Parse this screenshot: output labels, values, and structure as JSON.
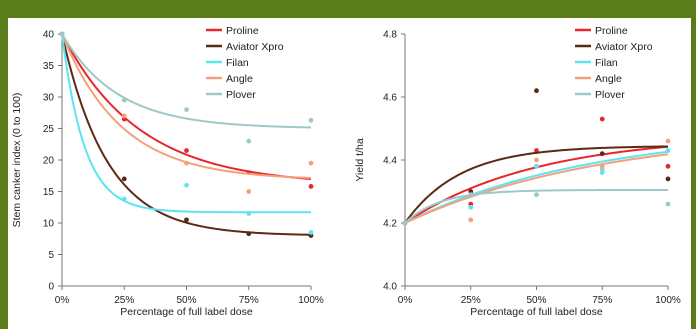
{
  "colors": {
    "Proline": "#e8262b",
    "Aviator Xpro": "#5b2a14",
    "Filan": "#5ee3f0",
    "Angle": "#f4a07a",
    "Plover": "#9ec8c8"
  },
  "chart_data": [
    {
      "type": "scatter",
      "title": "",
      "xlabel": "Percentage of full label dose",
      "ylabel": "Stem canker index (0 to 100)",
      "categories": [
        "0%",
        "25%",
        "50%",
        "75%",
        "100%"
      ],
      "x": [
        0,
        25,
        50,
        75,
        100
      ],
      "xlim": [
        0,
        100
      ],
      "ylim": [
        0,
        40
      ],
      "yticks": [
        "0",
        "5",
        "10",
        "15",
        "20",
        "25",
        "30",
        "35",
        "40"
      ],
      "legend": "top-right",
      "grid": false,
      "series": [
        {
          "name": "Proline",
          "points": [
            40,
            26.5,
            21.5,
            18,
            15.8
          ],
          "curve": {
            "a": 16,
            "b": 24,
            "k": 0.032
          }
        },
        {
          "name": "Aviator Xpro",
          "points": [
            40,
            17,
            10.5,
            8.3,
            8
          ],
          "curve": {
            "a": 8,
            "b": 32,
            "k": 0.055
          }
        },
        {
          "name": "Filan",
          "points": [
            40,
            13.8,
            16,
            11.5,
            8.5
          ],
          "curve": {
            "a": 11.7,
            "b": 28.3,
            "k": 0.11
          }
        },
        {
          "name": "Angle",
          "points": [
            40,
            27,
            19.5,
            15,
            19.5
          ],
          "curve": {
            "a": 16.8,
            "b": 23.2,
            "k": 0.042
          }
        },
        {
          "name": "Plover",
          "points": [
            40,
            29.5,
            28,
            23,
            26.3
          ],
          "curve": {
            "a": 25,
            "b": 15,
            "k": 0.045
          }
        }
      ]
    },
    {
      "type": "scatter",
      "title": "",
      "xlabel": "Percentage of full label dose",
      "ylabel": "Yield t/ha",
      "categories": [
        "0%",
        "25%",
        "50%",
        "75%",
        "100%"
      ],
      "x": [
        0,
        25,
        50,
        75,
        100
      ],
      "xlim": [
        0,
        100
      ],
      "ylim": [
        4.0,
        4.8
      ],
      "yticks": [
        "4.0",
        "4.2",
        "4.4",
        "4.6",
        "4.8"
      ],
      "legend": "top-right",
      "grid": false,
      "series": [
        {
          "name": "Proline",
          "points": [
            4.2,
            4.26,
            4.43,
            4.53,
            4.38
          ],
          "curve": {
            "a": 4.48,
            "b": -0.28,
            "k": 0.02
          }
        },
        {
          "name": "Aviator Xpro",
          "points": [
            4.2,
            4.3,
            4.62,
            4.42,
            4.34
          ],
          "curve": {
            "a": 4.445,
            "b": -0.245,
            "k": 0.048
          }
        },
        {
          "name": "Filan",
          "points": [
            4.2,
            4.25,
            4.38,
            4.36,
            4.43
          ],
          "curve": {
            "a": 4.5,
            "b": -0.3,
            "k": 0.014
          }
        },
        {
          "name": "Angle",
          "points": [
            4.2,
            4.21,
            4.4,
            4.38,
            4.46
          ],
          "curve": {
            "a": 4.5,
            "b": -0.3,
            "k": 0.013
          }
        },
        {
          "name": "Plover",
          "points": [
            4.2,
            4.29,
            4.29,
            4.37,
            4.26
          ],
          "curve": {
            "a": 4.305,
            "b": -0.105,
            "k": 0.075
          }
        }
      ]
    }
  ]
}
